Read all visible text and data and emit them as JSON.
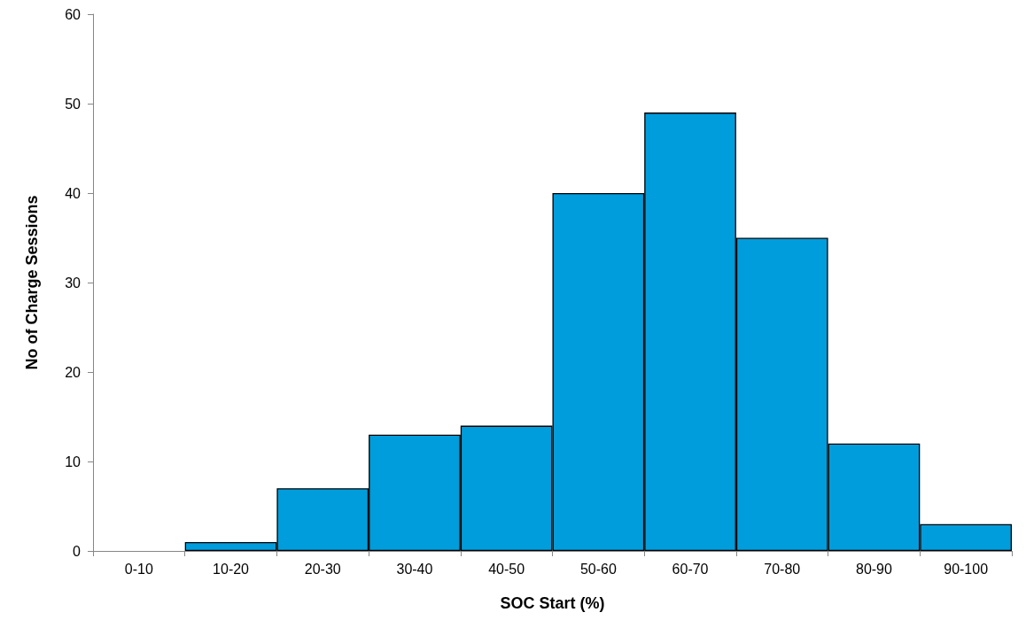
{
  "chart_data": {
    "type": "bar",
    "xlabel": "SOC Start (%)",
    "ylabel": "No of Charge Sessions",
    "categories": [
      "0-10",
      "10-20",
      "20-30",
      "30-40",
      "40-50",
      "50-60",
      "60-70",
      "70-80",
      "80-90",
      "90-100"
    ],
    "values": [
      0,
      1,
      7,
      13,
      14,
      40,
      49,
      35,
      12,
      3
    ],
    "color": "#009ddc",
    "ylim": [
      0,
      60
    ],
    "yticks": [
      0,
      10,
      20,
      30,
      40,
      50,
      60
    ],
    "grid": false
  }
}
